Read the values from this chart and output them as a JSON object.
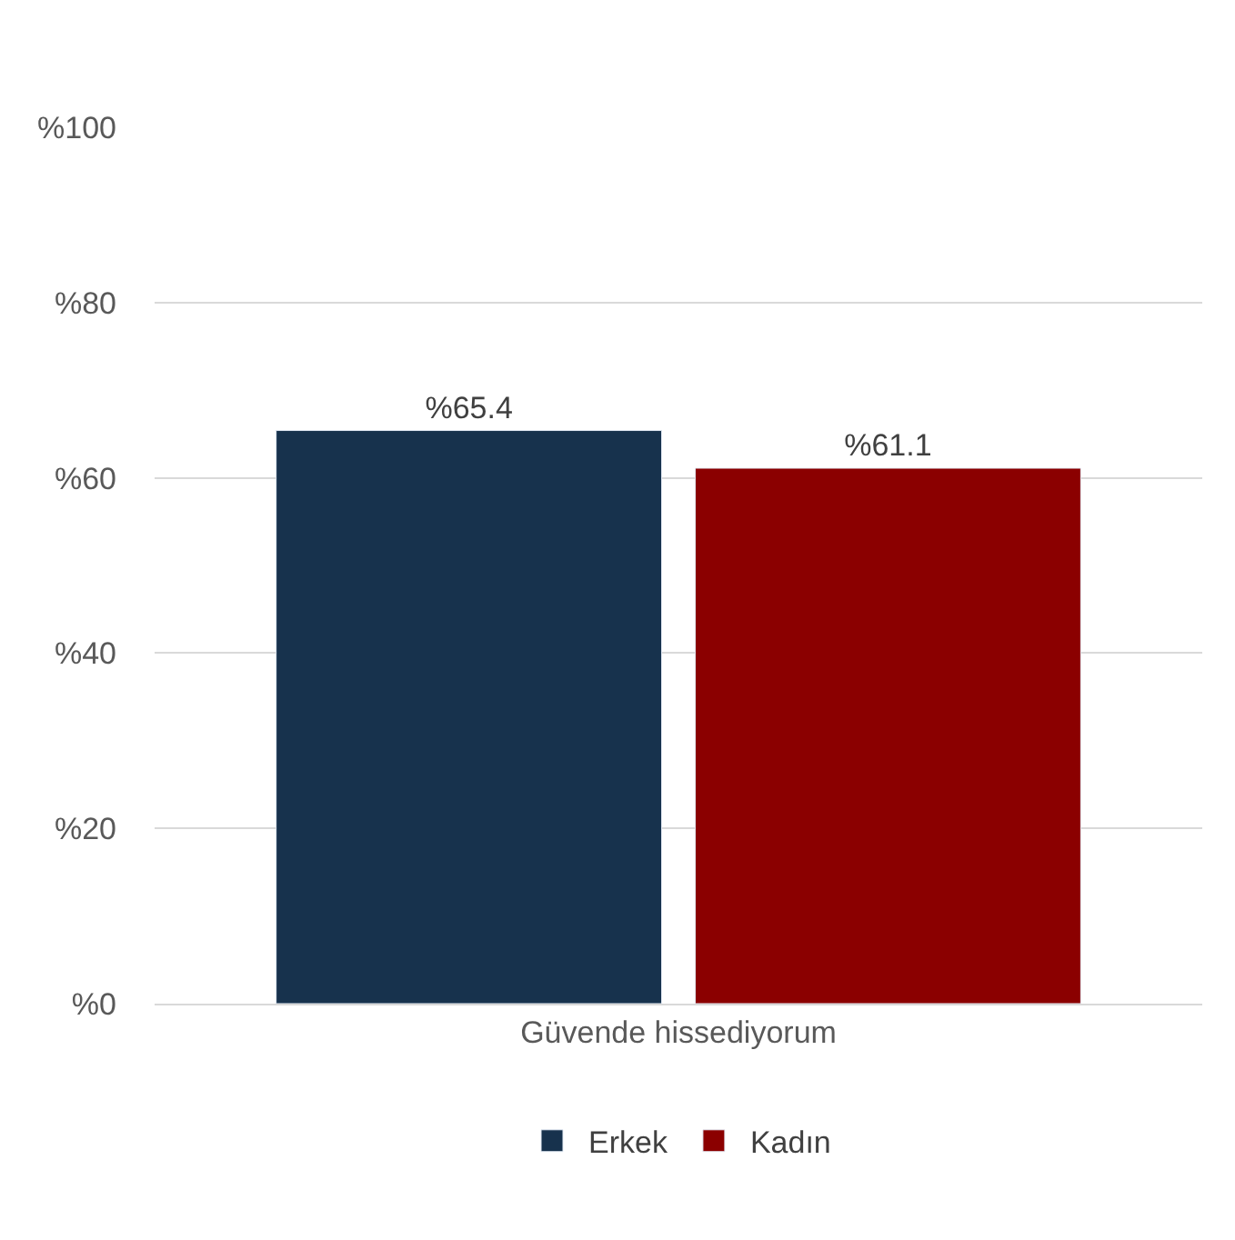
{
  "chart_data": {
    "type": "bar",
    "categories": [
      "Güvende hissediyorum"
    ],
    "series": [
      {
        "name": "Erkek",
        "color": "#17324d",
        "values": [
          65.4
        ],
        "value_labels": [
          "%65.4"
        ]
      },
      {
        "name": "Kadın",
        "color": "#8b0000",
        "values": [
          61.1
        ],
        "value_labels": [
          "%61.1"
        ]
      }
    ],
    "ylim": [
      0,
      100
    ],
    "yticks": [
      {
        "value": 0,
        "label": "%0"
      },
      {
        "value": 20,
        "label": "%20"
      },
      {
        "value": 40,
        "label": "%40"
      },
      {
        "value": 60,
        "label": "%60"
      },
      {
        "value": 80,
        "label": "%80"
      },
      {
        "value": 100,
        "label": "%100"
      }
    ],
    "grid": "y",
    "legend": "bottom"
  }
}
